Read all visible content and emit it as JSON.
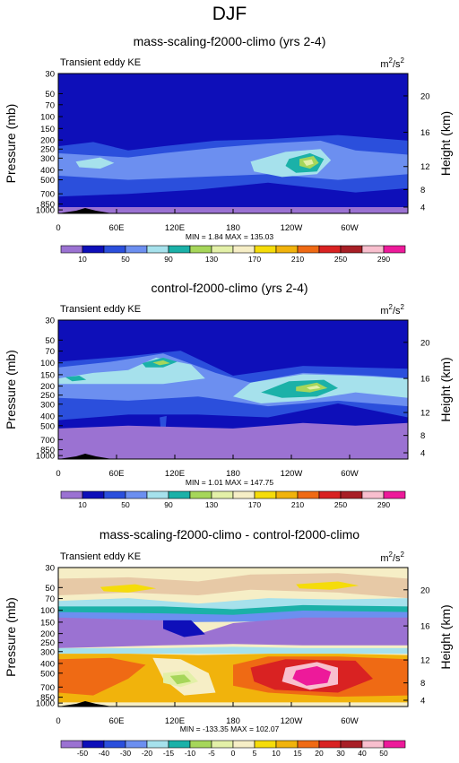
{
  "page": {
    "title": "DJF"
  },
  "colors": {
    "levels": [
      "#9b72d2",
      "#0e0fb9",
      "#2b4fdc",
      "#6c8ff0",
      "#a6e1ec",
      "#1bb1a8",
      "#a6d65a",
      "#e3f0a8",
      "#f6eec6",
      "#f5dc0a",
      "#f1b30c",
      "#ef6a14",
      "#d92222",
      "#a81f26",
      "#f8bfce",
      "#ed1a9a"
    ],
    "background": "#ffffff"
  },
  "chart_data": [
    {
      "type": "heatmap",
      "title": "mass-scaling-f2000-climo (yrs 2-4)",
      "subtitle_left": "Transient eddy KE",
      "units_base": "m",
      "units_sup1": "2",
      "units_mid": "/s",
      "units_sup2": "2",
      "ylabel": "Pressure (mb)",
      "ylabel_right": "Height (km)",
      "x_ticks": [
        "0",
        "60E",
        "120E",
        "180",
        "120W",
        "60W"
      ],
      "y_ticks": [
        "30",
        "50",
        "70",
        "100",
        "150",
        "200",
        "250",
        "300",
        "400",
        "500",
        "700",
        "850",
        "1000"
      ],
      "y_right_ticks": [
        "20",
        "16",
        "12",
        "8",
        "4"
      ],
      "stats": "MIN =   1.84  MAX = 135.03",
      "colorbar_labels": [
        "10",
        "50",
        "90",
        "130",
        "170",
        "210",
        "250",
        "290"
      ],
      "features": [
        "upper-troposphere jet maximum near 140W at 400 mb"
      ]
    },
    {
      "type": "heatmap",
      "title": "control-f2000-climo (yrs 2-4)",
      "subtitle_left": "Transient eddy KE",
      "units_base": "m",
      "units_sup1": "2",
      "units_mid": "/s",
      "units_sup2": "2",
      "ylabel": "Pressure (mb)",
      "ylabel_right": "Height (km)",
      "x_ticks": [
        "0",
        "60E",
        "120E",
        "180",
        "120W",
        "60W"
      ],
      "y_ticks": [
        "30",
        "50",
        "70",
        "100",
        "150",
        "200",
        "250",
        "300",
        "400",
        "500",
        "700",
        "850",
        "1000"
      ],
      "y_right_ticks": [
        "20",
        "16",
        "12",
        "8",
        "4"
      ],
      "stats": "MIN =   1.01  MAX = 147.75",
      "colorbar_labels": [
        "10",
        "50",
        "90",
        "130",
        "170",
        "210",
        "250",
        "290"
      ],
      "features": [
        "maxima near 100E at 100 mb and 140W at 150 mb"
      ]
    },
    {
      "type": "heatmap",
      "title": "mass-scaling-f2000-climo - control-f2000-climo",
      "subtitle_left": "Transient eddy KE",
      "units_base": "m",
      "units_sup1": "2",
      "units_mid": "/s",
      "units_sup2": "2",
      "ylabel": "Pressure (mb)",
      "ylabel_right": "Height (km)",
      "x_ticks": [
        "0",
        "60E",
        "120E",
        "180",
        "120W",
        "60W"
      ],
      "y_ticks": [
        "30",
        "50",
        "70",
        "100",
        "150",
        "200",
        "250",
        "300",
        "400",
        "500",
        "700",
        "850",
        "1000"
      ],
      "y_right_ticks": [
        "20",
        "16",
        "12",
        "8",
        "4"
      ],
      "stats": "MIN = -133.35  MAX = 102.07",
      "colorbar_labels": [
        "-50",
        "-40",
        "-30",
        "-20",
        "-15",
        "-10",
        "-5",
        "0",
        "5",
        "10",
        "15",
        "20",
        "30",
        "40",
        "50"
      ],
      "features": [
        "positive difference in lower troposphere",
        "negative difference near 100-200 mb"
      ]
    }
  ]
}
